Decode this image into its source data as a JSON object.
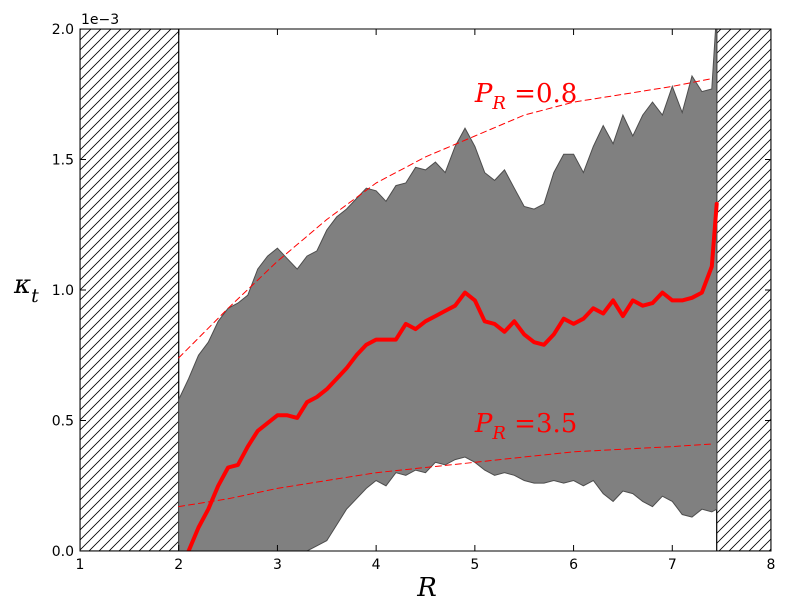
{
  "chart_data": {
    "type": "line",
    "xlabel": "R",
    "ylabel": "κ",
    "ylabel_subscript": "t",
    "y_offset_text": "1e−3",
    "xlim": [
      1,
      8
    ],
    "ylim": [
      0,
      0.002
    ],
    "grid": false,
    "x_ticks": [
      1,
      2,
      3,
      4,
      5,
      6,
      7,
      8
    ],
    "x_tick_labels": [
      "1",
      "2",
      "3",
      "4",
      "5",
      "6",
      "7",
      "8"
    ],
    "y_ticks": [
      0,
      0.0005,
      0.001,
      0.0015,
      0.002
    ],
    "y_tick_labels": [
      "0.0",
      "0.5",
      "1.0",
      "1.5",
      "2.0"
    ],
    "excluded_regions": [
      {
        "from": 1,
        "to": 2,
        "pattern": "hatched"
      },
      {
        "from": 7.45,
        "to": 8,
        "pattern": "hatched"
      }
    ],
    "band": {
      "color": "#808080",
      "edge_color": "#4d4d4d",
      "x": [
        2.0,
        2.1,
        2.2,
        2.3,
        2.4,
        2.5,
        2.6,
        2.7,
        2.8,
        2.9,
        3.0,
        3.1,
        3.2,
        3.3,
        3.4,
        3.5,
        3.6,
        3.7,
        3.8,
        3.9,
        4.0,
        4.1,
        4.2,
        4.3,
        4.4,
        4.5,
        4.6,
        4.7,
        4.8,
        4.9,
        5.0,
        5.1,
        5.2,
        5.3,
        5.4,
        5.5,
        5.6,
        5.7,
        5.8,
        5.9,
        6.0,
        6.1,
        6.2,
        6.3,
        6.4,
        6.5,
        6.6,
        6.7,
        6.8,
        6.9,
        7.0,
        7.1,
        7.2,
        7.3,
        7.4,
        7.45
      ],
      "upper": [
        0.00058,
        0.00066,
        0.00075,
        0.0008,
        0.00088,
        0.00093,
        0.00095,
        0.00098,
        0.00108,
        0.00113,
        0.00116,
        0.00112,
        0.00108,
        0.00113,
        0.00115,
        0.00123,
        0.00128,
        0.00131,
        0.00135,
        0.00139,
        0.00138,
        0.00134,
        0.0014,
        0.00141,
        0.00147,
        0.00146,
        0.00149,
        0.00145,
        0.00155,
        0.00162,
        0.00155,
        0.00145,
        0.00142,
        0.00146,
        0.00139,
        0.00132,
        0.00131,
        0.00133,
        0.00145,
        0.00152,
        0.00152,
        0.00145,
        0.00155,
        0.00163,
        0.00156,
        0.00167,
        0.00159,
        0.00167,
        0.00172,
        0.00167,
        0.00178,
        0.00168,
        0.00182,
        0.00176,
        0.00177,
        0.00207
      ],
      "lower": [
        0.0,
        0.0,
        0.0,
        0.0,
        0.0,
        0.0,
        0.0,
        0.0,
        0.0,
        0.0,
        0.0,
        0.0,
        0.0,
        0.0,
        2e-05,
        4e-05,
        0.0001,
        0.00016,
        0.0002,
        0.00024,
        0.00027,
        0.00025,
        0.0003,
        0.00029,
        0.00031,
        0.0003,
        0.00034,
        0.00033,
        0.00035,
        0.00036,
        0.00034,
        0.00031,
        0.00029,
        0.0003,
        0.00029,
        0.00027,
        0.00026,
        0.00026,
        0.00027,
        0.00026,
        0.00027,
        0.00025,
        0.00027,
        0.00022,
        0.00019,
        0.00023,
        0.00022,
        0.00019,
        0.00017,
        0.00021,
        0.00019,
        0.00014,
        0.00013,
        0.00016,
        0.00015,
        0.00016
      ]
    },
    "series": [
      {
        "color": "#ff0000",
        "style": "solid",
        "x": [
          2.1,
          2.2,
          2.3,
          2.4,
          2.5,
          2.6,
          2.7,
          2.8,
          2.9,
          3.0,
          3.1,
          3.2,
          3.3,
          3.4,
          3.5,
          3.6,
          3.7,
          3.8,
          3.9,
          4.0,
          4.1,
          4.2,
          4.3,
          4.4,
          4.5,
          4.6,
          4.7,
          4.8,
          4.9,
          5.0,
          5.1,
          5.2,
          5.3,
          5.4,
          5.5,
          5.6,
          5.7,
          5.8,
          5.9,
          6.0,
          6.1,
          6.2,
          6.3,
          6.4,
          6.5,
          6.6,
          6.7,
          6.8,
          6.9,
          7.0,
          7.1,
          7.2,
          7.3,
          7.4,
          7.45
        ],
        "y": [
          0.0,
          9e-05,
          0.00016,
          0.00025,
          0.00032,
          0.00033,
          0.0004,
          0.00046,
          0.00049,
          0.00052,
          0.00052,
          0.00051,
          0.00057,
          0.00059,
          0.00062,
          0.00066,
          0.0007,
          0.00075,
          0.00079,
          0.00081,
          0.00081,
          0.00081,
          0.00087,
          0.00085,
          0.00088,
          0.0009,
          0.00092,
          0.00094,
          0.00099,
          0.00096,
          0.00088,
          0.00087,
          0.00084,
          0.00088,
          0.00083,
          0.0008,
          0.00079,
          0.00083,
          0.00089,
          0.00087,
          0.00089,
          0.00093,
          0.00091,
          0.00096,
          0.0009,
          0.00096,
          0.00094,
          0.00095,
          0.00099,
          0.00096,
          0.00096,
          0.00097,
          0.00099,
          0.00109,
          0.00133
        ]
      },
      {
        "color": "#ff0000",
        "style": "dashed",
        "x": [
          2.0,
          2.5,
          3.0,
          3.5,
          4.0,
          4.5,
          5.0,
          5.5,
          6.0,
          6.5,
          7.0,
          7.4
        ],
        "y": [
          0.00074,
          0.00093,
          0.00111,
          0.00127,
          0.00141,
          0.00151,
          0.00159,
          0.00167,
          0.00172,
          0.00175,
          0.00178,
          0.00181
        ]
      },
      {
        "color": "#ff0000",
        "style": "dashed",
        "x": [
          2.0,
          2.5,
          3.0,
          3.5,
          4.0,
          4.5,
          5.0,
          5.5,
          6.0,
          6.5,
          7.0,
          7.4
        ],
        "y": [
          0.00017,
          0.0002,
          0.00024,
          0.00027,
          0.0003,
          0.00032,
          0.00034,
          0.00036,
          0.00038,
          0.00039,
          0.0004,
          0.00041
        ]
      }
    ],
    "annotations": [
      {
        "base": "P",
        "sub": "R",
        "rest": " =0.8",
        "x": 5.0,
        "y": 0.00172,
        "color": "#ff0000"
      },
      {
        "base": "P",
        "sub": "R",
        "rest": " =3.5",
        "x": 5.0,
        "y": 0.000455,
        "color": "#ff0000"
      }
    ]
  }
}
